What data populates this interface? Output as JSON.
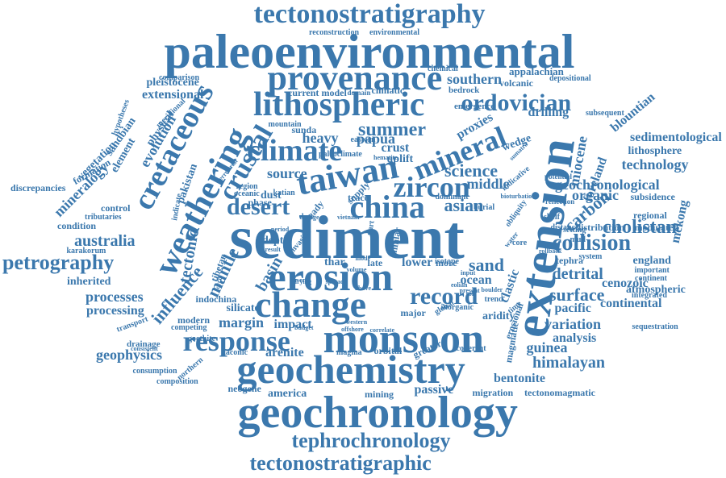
{
  "theme": {
    "word_color": "#3b78ad",
    "background": "#ffffff"
  },
  "words": [
    "tectonostratigraphy",
    "paleoenvironmental",
    "provenance",
    "lithospheric",
    "ordovician",
    "southern",
    "appalachian",
    "extensional",
    "climate",
    "summer",
    "taiwan",
    "mineral",
    "extension",
    "zircon",
    "china",
    "desert",
    "crustal",
    "weathering",
    "cretaceous",
    "sediment",
    "erosion",
    "change",
    "record",
    "monsoon",
    "response",
    "geochemistry",
    "geochronology",
    "tephrochronology",
    "tectonostratigraphic",
    "petrography",
    "australia",
    "mineralogy",
    "collision",
    "cholistan",
    "carbon",
    "detrital",
    "miocene",
    "foreland",
    "organic",
    "technology",
    "sedimentological",
    "lithosphere",
    "surface",
    "himalayan",
    "guinea",
    "bentonite",
    "analysis",
    "variation",
    "continental",
    "pacific",
    "cenozoic",
    "england",
    "geophysics",
    "processes",
    "processing",
    "inherited",
    "mantle",
    "basin",
    "tectonic",
    "influence",
    "evolution",
    "physical",
    "element",
    "source",
    "science",
    "asian",
    "middle",
    "proxies",
    "drilling",
    "uplift",
    "wedge",
    "heavy",
    "dust",
    "sand",
    "ocean",
    "lower",
    "more",
    "late",
    "thar",
    "margin",
    "impact",
    "arenite",
    "silicate",
    "america",
    "mining",
    "passive",
    "migration",
    "tectonomagmatic",
    "neogene",
    "greater",
    "orbital",
    "major",
    "drainage",
    "consumption",
    "composition",
    "taconic",
    "magma",
    "northern",
    "indochina",
    "modern",
    "competing",
    "transport",
    "goethite",
    "tibetan",
    "pakistan",
    "vegetation",
    "hypotheses",
    "formation",
    "sandbian",
    "discrepancies",
    "condition",
    "control",
    "tributaries",
    "karakorum",
    "comparison",
    "pleistocene",
    "current",
    "model",
    "domain",
    "climatic",
    "bedrock",
    "volcanic",
    "depositional",
    "emergence",
    "subsequent",
    "blountian",
    "reconstruction",
    "environmental",
    "chemical",
    "papua",
    "crust",
    "katian",
    "phase",
    "oceanic",
    "region",
    "mountain",
    "sunda",
    "eastern",
    "meridional",
    "integrated",
    "sequestration",
    "continent",
    "atmospheric",
    "important",
    "modulated",
    "regional",
    "subsidence",
    "distribution",
    "mekong",
    "geochronological",
    "tephra",
    "system",
    "distance",
    "setting",
    "rollback",
    "coherent",
    "correlate",
    "western",
    "budget",
    "offshore",
    "global",
    "inorganic",
    "aridity",
    "clastic",
    "erosional",
    "magmatic",
    "time",
    "isotope",
    "present",
    "eolian",
    "input",
    "burial",
    "dominant",
    "obliquity",
    "indicative",
    "potential",
    "sumatra",
    "reflection",
    "bioturbation",
    "shelf",
    "core",
    "water",
    "supply",
    "trace",
    "part",
    "date",
    "steady",
    "similar",
    "mode",
    "volume",
    "river",
    "drying",
    "spread",
    "above",
    "depth",
    "result",
    "invasion",
    "period",
    "range",
    "vietnam",
    "terrestrial",
    "paleoclimate",
    "hematite",
    "indicate",
    "consistent",
    "cycle",
    "trend",
    "role",
    "mud",
    "boulder"
  ]
}
